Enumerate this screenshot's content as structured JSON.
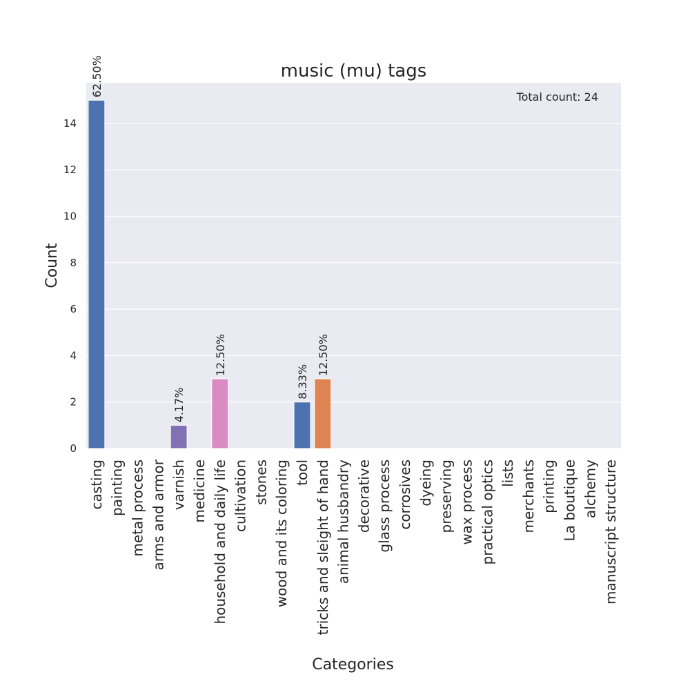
{
  "chart_data": {
    "type": "bar",
    "title": "music (mu) tags",
    "xlabel": "Categories",
    "ylabel": "Count",
    "ylim": [
      0,
      15.75
    ],
    "yticks": [
      0,
      2,
      4,
      6,
      8,
      10,
      12,
      14
    ],
    "grid": true,
    "annotation": "Total count: 24",
    "categories": [
      "casting",
      "painting",
      "metal process",
      "arms and armor",
      "varnish",
      "medicine",
      "household and daily life",
      "cultivation",
      "stones",
      "wood and its coloring",
      "tool",
      "tricks and sleight of hand",
      "animal husbandry",
      "decorative",
      "glass process",
      "corrosives",
      "dyeing",
      "preserving",
      "wax process",
      "practical optics",
      "lists",
      "merchants",
      "printing",
      "La boutique",
      "alchemy",
      "manuscript structure"
    ],
    "values": [
      15,
      0,
      0,
      0,
      1,
      0,
      3,
      0,
      0,
      0,
      2,
      3,
      0,
      0,
      0,
      0,
      0,
      0,
      0,
      0,
      0,
      0,
      0,
      0,
      0,
      0
    ],
    "labels": [
      "62.50%",
      "",
      "",
      "",
      "4.17%",
      "",
      "12.50%",
      "",
      "",
      "",
      "8.33%",
      "12.50%",
      "",
      "",
      "",
      "",
      "",
      "",
      "",
      "",
      "",
      "",
      "",
      "",
      "",
      ""
    ],
    "colors": [
      "#4c72b0",
      "#dd8452",
      "#55a868",
      "#c44e52",
      "#8172b3",
      "#937860",
      "#da8bc3",
      "#8c8c8c",
      "#ccb974",
      "#64b5cd",
      "#4c72b0",
      "#dd8452",
      "#55a868",
      "#c44e52",
      "#8172b3",
      "#937860",
      "#da8bc3",
      "#8c8c8c",
      "#ccb974",
      "#64b5cd",
      "#4c72b0",
      "#dd8452",
      "#55a868",
      "#c44e52",
      "#8172b3",
      "#937860"
    ],
    "background": "#eaeaf2"
  }
}
